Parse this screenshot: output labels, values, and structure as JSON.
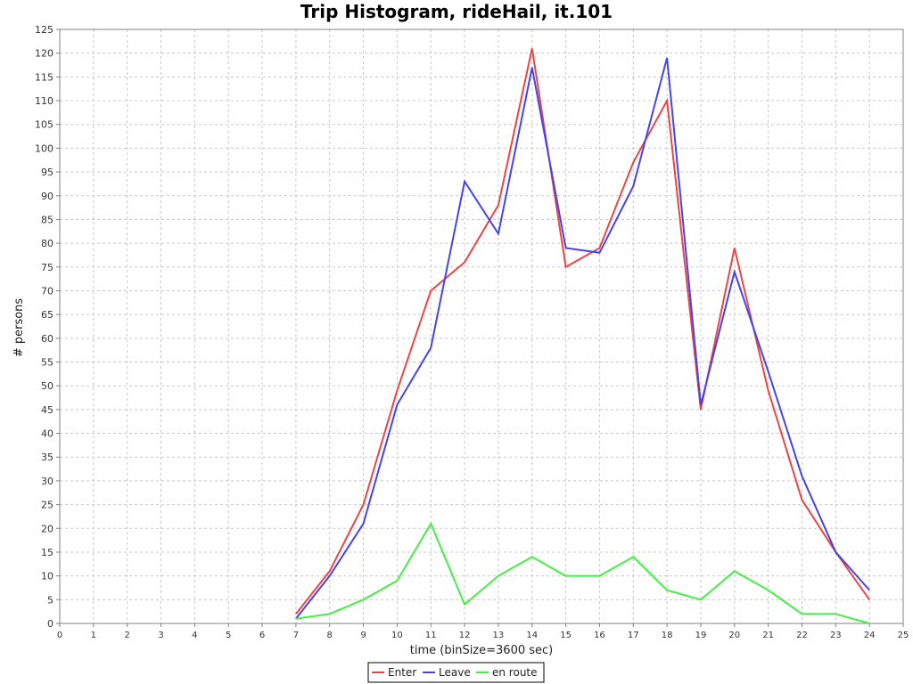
{
  "chart_data": {
    "type": "line",
    "title": "Trip Histogram, rideHail, it.101",
    "xlabel": "time (binSize=3600 sec)",
    "ylabel": "# persons",
    "xlim": [
      0,
      25
    ],
    "ylim": [
      0,
      125
    ],
    "xticks": [
      0,
      1,
      2,
      3,
      4,
      5,
      6,
      7,
      8,
      9,
      10,
      11,
      12,
      13,
      14,
      15,
      16,
      17,
      18,
      19,
      20,
      21,
      22,
      23,
      24,
      25
    ],
    "yticks": [
      0,
      5,
      10,
      15,
      20,
      25,
      30,
      35,
      40,
      45,
      50,
      55,
      60,
      65,
      70,
      75,
      80,
      85,
      90,
      95,
      100,
      105,
      110,
      115,
      120,
      125
    ],
    "grid": true,
    "legend_position": "bottom-center",
    "x": [
      7,
      8,
      9,
      10,
      11,
      12,
      13,
      14,
      15,
      16,
      17,
      18,
      19,
      20,
      21,
      22,
      23,
      24
    ],
    "series": [
      {
        "name": "Enter",
        "color": "#ee4444",
        "values": [
          2,
          11,
          25,
          49,
          70,
          76,
          88,
          121,
          75,
          79,
          97,
          110,
          45,
          79,
          49,
          26,
          15,
          5
        ]
      },
      {
        "name": "Leave",
        "color": "#4444ee",
        "values": [
          1,
          10,
          21,
          46,
          58,
          93,
          82,
          117,
          79,
          78,
          92,
          119,
          46,
          74,
          53,
          31,
          15,
          7
        ]
      },
      {
        "name": "en route",
        "color": "#44ee44",
        "values": [
          1,
          2,
          5,
          9,
          21,
          4,
          10,
          14,
          10,
          10,
          14,
          7,
          5,
          11,
          7,
          2,
          2,
          0
        ]
      }
    ]
  }
}
